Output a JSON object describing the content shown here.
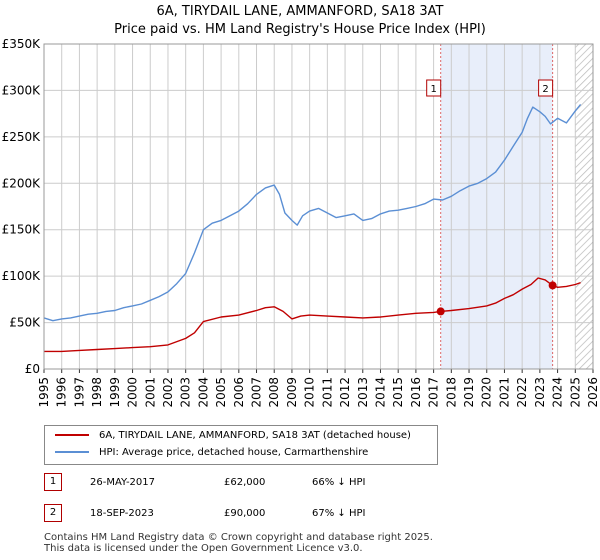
{
  "title_line1": "6A, TIRYDAIL LANE, AMMANFORD, SA18 3AT",
  "title_line2": "Price paid vs. HM Land Registry's House Price Index (HPI)",
  "legend": {
    "property": "6A, TIRYDAIL LANE, AMMANFORD, SA18 3AT (detached house)",
    "hpi": "HPI: Average price, detached house, Carmarthenshire"
  },
  "transactions": [
    {
      "id": "1",
      "date": "26-MAY-2017",
      "price": "£62,000",
      "hpi_delta": "66% ↓ HPI"
    },
    {
      "id": "2",
      "date": "18-SEP-2023",
      "price": "£90,000",
      "hpi_delta": "67% ↓ HPI"
    }
  ],
  "footer_line1": "Contains HM Land Registry data © Crown copyright and database right 2025.",
  "footer_line2": "This data is licensed under the Open Government Licence v3.0.",
  "colors": {
    "property": "#c00000",
    "hpi": "#5b8fd4",
    "shade": "#e8eefa",
    "grid": "#cccccc",
    "marker_line": "#dd6666"
  },
  "chart_data": {
    "type": "line",
    "title": "Price paid vs. HM Land Registry's House Price Index (HPI)",
    "xlabel": "",
    "ylabel": "",
    "xlim": [
      1995,
      2026
    ],
    "ylim": [
      0,
      350000
    ],
    "y_ticks": [
      0,
      50000,
      100000,
      150000,
      200000,
      250000,
      300000,
      350000
    ],
    "y_tick_labels": [
      "£0",
      "£50K",
      "£100K",
      "£150K",
      "£200K",
      "£250K",
      "£300K",
      "£350K"
    ],
    "x_ticks": [
      1995,
      1996,
      1997,
      1998,
      1999,
      2000,
      2001,
      2002,
      2003,
      2004,
      2005,
      2006,
      2007,
      2008,
      2009,
      2010,
      2011,
      2012,
      2013,
      2014,
      2015,
      2016,
      2017,
      2018,
      2019,
      2020,
      2021,
      2022,
      2023,
      2024,
      2025,
      2026
    ],
    "x_tick_labels": [
      "1995",
      "1996",
      "1997",
      "1998",
      "1999",
      "2000",
      "2001",
      "2002",
      "2003",
      "2004",
      "2005",
      "2006",
      "2007",
      "2008",
      "2009",
      "2010",
      "2011",
      "2012",
      "2013",
      "2014",
      "2015",
      "2016",
      "2017",
      "2018",
      "2019",
      "2020",
      "2021",
      "2022",
      "2023",
      "2024",
      "2025",
      "2026"
    ],
    "shaded_range": [
      2017.4,
      2023.72
    ],
    "hatched_from": 2025.0,
    "series": [
      {
        "name": "6A, TIRYDAIL LANE, AMMANFORD, SA18 3AT (detached house)",
        "x": [
          1995.0,
          1996.0,
          1997.0,
          1998.0,
          1999.0,
          2000.0,
          2001.0,
          2002.0,
          2003.0,
          2003.5,
          2004.0,
          2005.0,
          2006.0,
          2007.0,
          2007.5,
          2008.0,
          2008.5,
          2009.0,
          2009.5,
          2010.0,
          2011.0,
          2012.0,
          2013.0,
          2014.0,
          2015.0,
          2016.0,
          2017.0,
          2017.4,
          2018.0,
          2019.0,
          2020.0,
          2020.5,
          2021.0,
          2021.5,
          2022.0,
          2022.5,
          2022.9,
          2023.3,
          2023.72,
          2024.0,
          2024.5,
          2025.0,
          2025.3
        ],
        "values": [
          19000,
          19000,
          20000,
          21000,
          22000,
          23000,
          24000,
          26000,
          33000,
          39000,
          51000,
          56000,
          58000,
          63000,
          66000,
          67000,
          62000,
          54000,
          57000,
          58000,
          57000,
          56000,
          55000,
          56000,
          58000,
          60000,
          61000,
          62000,
          63000,
          65000,
          68000,
          71000,
          76000,
          80000,
          86000,
          91000,
          98000,
          96000,
          90000,
          88000,
          89000,
          91000,
          93000
        ]
      },
      {
        "name": "HPI: Average price, detached house, Carmarthenshire",
        "x": [
          1995.0,
          1995.5,
          1996.0,
          1996.5,
          1997.0,
          1997.5,
          1998.0,
          1998.5,
          1999.0,
          1999.5,
          2000.0,
          2000.5,
          2001.0,
          2001.5,
          2002.0,
          2002.5,
          2003.0,
          2003.5,
          2004.0,
          2004.5,
          2005.0,
          2005.5,
          2006.0,
          2006.5,
          2007.0,
          2007.5,
          2008.0,
          2008.3,
          2008.6,
          2009.0,
          2009.3,
          2009.6,
          2010.0,
          2010.5,
          2011.0,
          2011.5,
          2012.0,
          2012.5,
          2013.0,
          2013.5,
          2014.0,
          2014.5,
          2015.0,
          2015.5,
          2016.0,
          2016.5,
          2017.0,
          2017.5,
          2018.0,
          2018.5,
          2019.0,
          2019.5,
          2020.0,
          2020.5,
          2021.0,
          2021.5,
          2022.0,
          2022.3,
          2022.6,
          2023.0,
          2023.3,
          2023.6,
          2024.0,
          2024.5,
          2025.0,
          2025.3
        ],
        "values": [
          55000,
          52000,
          54000,
          55000,
          57000,
          59000,
          60000,
          62000,
          63000,
          66000,
          68000,
          70000,
          74000,
          78000,
          83000,
          92000,
          103000,
          125000,
          150000,
          157000,
          160000,
          165000,
          170000,
          178000,
          188000,
          195000,
          198000,
          188000,
          168000,
          160000,
          155000,
          165000,
          170000,
          173000,
          168000,
          163000,
          165000,
          167000,
          160000,
          162000,
          167000,
          170000,
          171000,
          173000,
          175000,
          178000,
          183000,
          182000,
          186000,
          192000,
          197000,
          200000,
          205000,
          212000,
          225000,
          240000,
          255000,
          270000,
          282000,
          277000,
          272000,
          264000,
          270000,
          265000,
          278000,
          285000
        ]
      }
    ],
    "annotations": [
      {
        "label": "1",
        "x": 2017.4,
        "y": 62000
      },
      {
        "label": "2",
        "x": 2023.72,
        "y": 90000
      }
    ]
  }
}
